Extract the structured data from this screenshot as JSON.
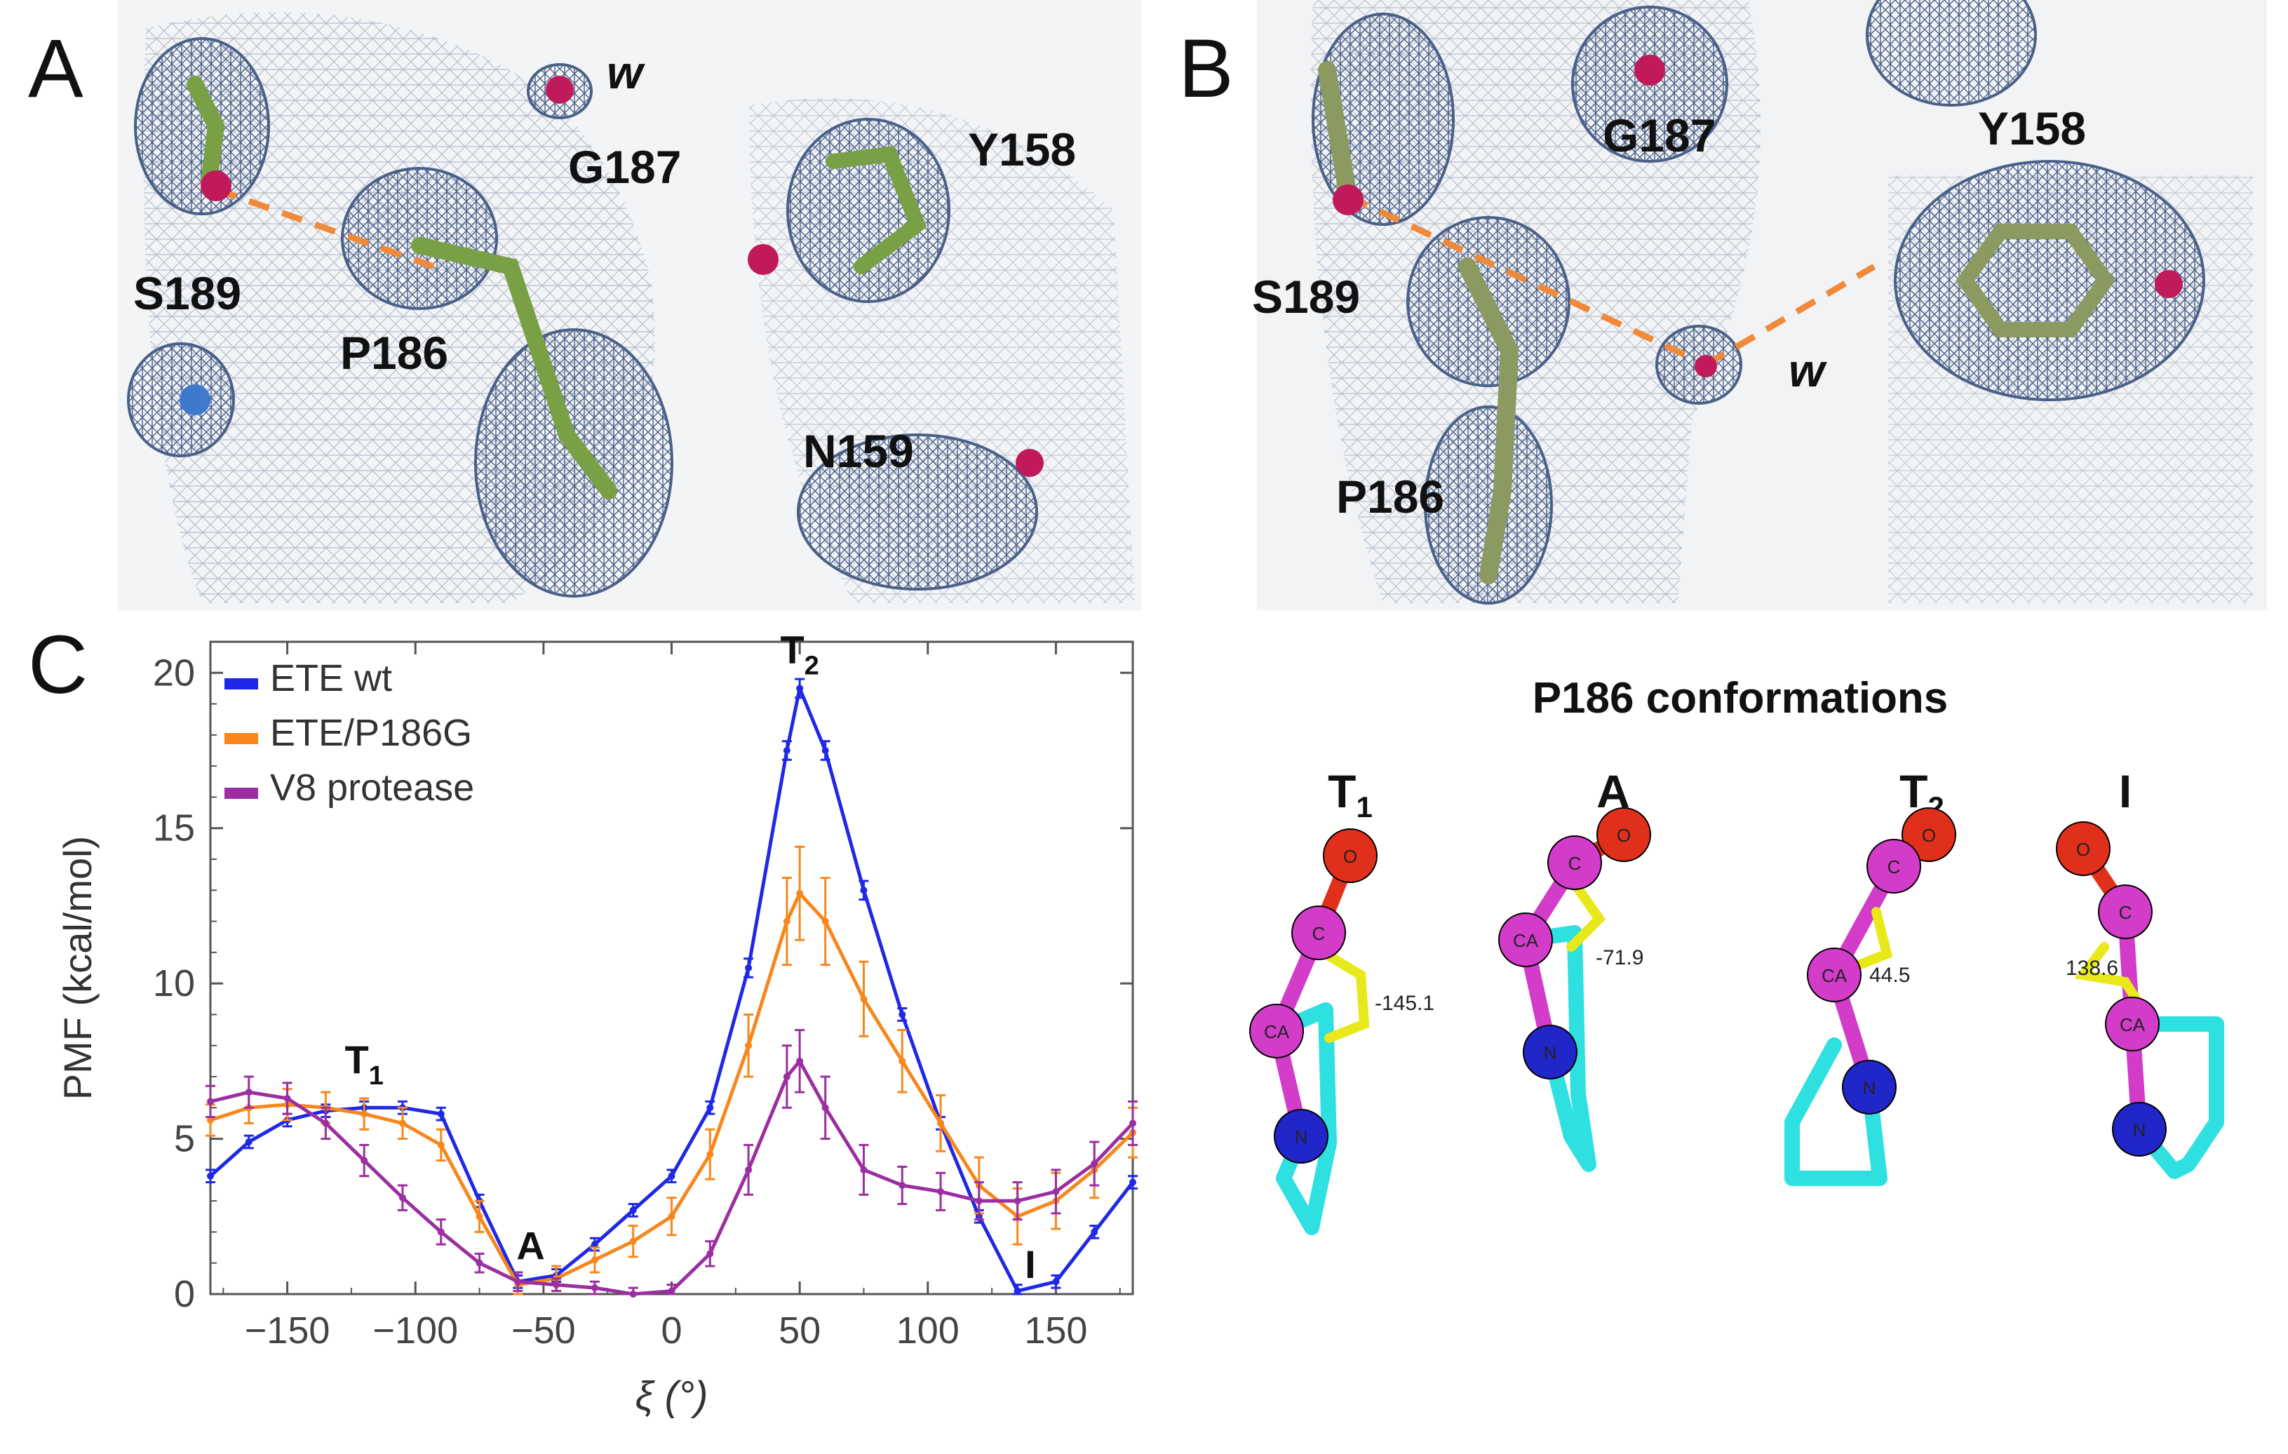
{
  "panels": {
    "a": {
      "label": "A",
      "residues": [
        "S189",
        "P186",
        "G187",
        "Y158",
        "N159"
      ],
      "water": "w"
    },
    "b": {
      "label": "B",
      "residues": [
        "S189",
        "G187",
        "Y158",
        "P186"
      ],
      "water": "w"
    },
    "c": {
      "label": "C"
    }
  },
  "chart_data": {
    "type": "line",
    "title": "",
    "xlabel": "ξ (°)",
    "ylabel": "PMF (kcal/mol)",
    "xlim": [
      -180,
      180
    ],
    "ylim": [
      0,
      21
    ],
    "xticks": [
      -150,
      -100,
      -50,
      0,
      50,
      100,
      150
    ],
    "yticks": [
      0,
      5,
      10,
      15,
      20
    ],
    "xtick_labels": [
      "−150",
      "−100",
      "−50",
      "0",
      "50",
      "100",
      "150"
    ],
    "ytick_labels": [
      "0",
      "5",
      "10",
      "15",
      "20"
    ],
    "x": [
      -180,
      -165,
      -150,
      -135,
      -120,
      -105,
      -90,
      -75,
      -60,
      -45,
      -30,
      -15,
      0,
      15,
      30,
      45,
      50,
      60,
      75,
      90,
      105,
      120,
      135,
      150,
      165,
      180
    ],
    "series": [
      {
        "name": "ETE wt",
        "color": "#1f28e6",
        "values": [
          3.8,
          4.9,
          5.6,
          5.9,
          6.0,
          6.0,
          5.8,
          3.0,
          0.4,
          0.6,
          1.6,
          2.7,
          3.8,
          6.0,
          10.5,
          17.5,
          19.5,
          17.5,
          13.0,
          9.0,
          5.5,
          2.5,
          0.1,
          0.4,
          2.0,
          3.6
        ],
        "errors": [
          0.2,
          0.2,
          0.2,
          0.2,
          0.2,
          0.2,
          0.2,
          0.2,
          0.2,
          0.2,
          0.2,
          0.2,
          0.2,
          0.2,
          0.3,
          0.3,
          0.3,
          0.3,
          0.3,
          0.2,
          0.2,
          0.2,
          0.2,
          0.2,
          0.2,
          0.2
        ]
      },
      {
        "name": "ETE/P186G",
        "color": "#f7871d",
        "values": [
          5.6,
          6.0,
          6.1,
          6.0,
          5.8,
          5.5,
          4.8,
          2.5,
          0.3,
          0.5,
          1.1,
          1.7,
          2.5,
          4.5,
          8.0,
          12.0,
          12.9,
          12.0,
          9.5,
          7.5,
          5.5,
          3.5,
          2.5,
          3.0,
          4.0,
          5.2
        ],
        "errors": [
          0.5,
          0.5,
          0.5,
          0.5,
          0.5,
          0.5,
          0.5,
          0.5,
          0.4,
          0.4,
          0.4,
          0.5,
          0.6,
          0.8,
          1.0,
          1.4,
          1.5,
          1.4,
          1.2,
          1.0,
          0.9,
          0.9,
          0.9,
          0.9,
          0.9,
          0.8
        ]
      },
      {
        "name": "V8 protease",
        "color": "#9b2ea0",
        "values": [
          6.2,
          6.5,
          6.3,
          5.5,
          4.3,
          3.1,
          2.0,
          1.0,
          0.4,
          0.3,
          0.2,
          0.0,
          0.1,
          1.3,
          4.0,
          7.0,
          7.5,
          6.0,
          4.0,
          3.5,
          3.3,
          3.0,
          3.0,
          3.3,
          4.2,
          5.5
        ],
        "errors": [
          0.5,
          0.5,
          0.5,
          0.5,
          0.5,
          0.4,
          0.4,
          0.3,
          0.3,
          0.2,
          0.2,
          0.2,
          0.2,
          0.4,
          0.8,
          1.0,
          1.0,
          1.0,
          0.8,
          0.6,
          0.6,
          0.6,
          0.6,
          0.7,
          0.7,
          0.7
        ]
      }
    ],
    "annotations": [
      {
        "text": "T",
        "sub": "1",
        "x": -120,
        "y": 6.8
      },
      {
        "text": "A",
        "sub": "",
        "x": -55,
        "y": 0.8
      },
      {
        "text": "T",
        "sub": "2",
        "x": 50,
        "y": 20.0
      },
      {
        "text": "I",
        "sub": "",
        "x": 140,
        "y": 0.2
      }
    ],
    "legend": "top-left"
  },
  "conformations": {
    "title": "P186 conformations",
    "states": [
      {
        "label": "T",
        "sub": "1",
        "angle": "-145.1"
      },
      {
        "label": "A",
        "sub": "",
        "angle": "-71.9"
      },
      {
        "label": "T",
        "sub": "2",
        "angle": "44.5"
      },
      {
        "label": "I",
        "sub": "",
        "angle": "138.6"
      }
    ],
    "atoms": {
      "o": "O",
      "c": "C",
      "ca": "CA",
      "n": "N"
    },
    "colors": {
      "carbon": "#d23cc8",
      "oxygen": "#e0301c",
      "nitrogen": "#2026c8",
      "ring": "#2ee0e0",
      "dihedral": "#e8e81a"
    }
  }
}
